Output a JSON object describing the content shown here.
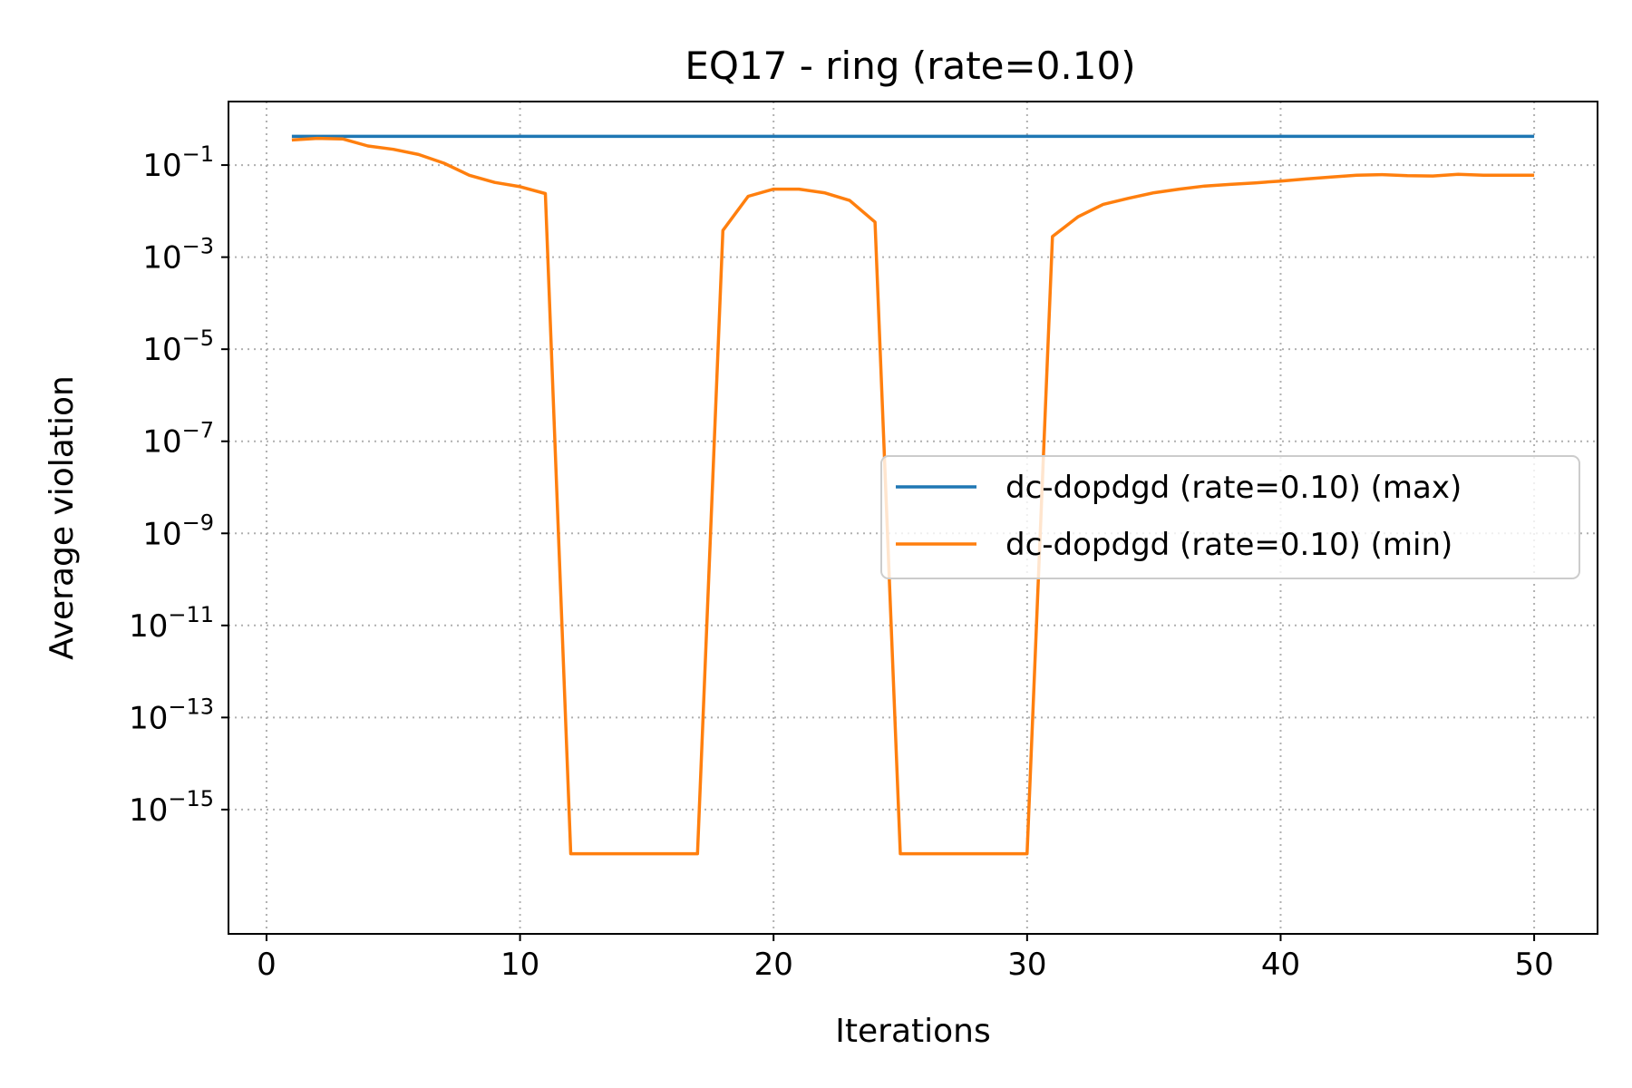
{
  "chart_data": {
    "type": "line",
    "title": "EQ17 - ring (rate=0.10)",
    "xlabel": "Iterations",
    "ylabel": "Average violation",
    "yscale": "log",
    "xlim": [
      -1.5,
      52.5
    ],
    "ylim_exponent": [
      -17.7,
      0.38
    ],
    "x_ticks": [
      0,
      10,
      20,
      30,
      40,
      50
    ],
    "y_ticks": [
      {
        "base": "10",
        "exp": "−1",
        "value": 0.1
      },
      {
        "base": "10",
        "exp": "−3",
        "value": 0.001
      },
      {
        "base": "10",
        "exp": "−5",
        "value": 1e-05
      },
      {
        "base": "10",
        "exp": "−7",
        "value": 1e-07
      },
      {
        "base": "10",
        "exp": "−9",
        "value": 1e-09
      },
      {
        "base": "10",
        "exp": "−11",
        "value": 1e-11
      },
      {
        "base": "10",
        "exp": "−13",
        "value": 1e-13
      },
      {
        "base": "10",
        "exp": "−15",
        "value": 1e-15
      }
    ],
    "grid": true,
    "legend_position": "center-right",
    "x": [
      1,
      2,
      3,
      4,
      5,
      6,
      7,
      8,
      9,
      10,
      11,
      12,
      13,
      14,
      15,
      16,
      17,
      18,
      19,
      20,
      21,
      22,
      23,
      24,
      25,
      26,
      27,
      28,
      29,
      30,
      31,
      32,
      33,
      34,
      35,
      36,
      37,
      38,
      39,
      40,
      41,
      42,
      43,
      44,
      45,
      46,
      47,
      48,
      49,
      50
    ],
    "series": [
      {
        "name": "dc-dopdgd (rate=0.10) (max)",
        "color": "#1f77b4",
        "values": [
          0.42,
          0.42,
          0.42,
          0.42,
          0.42,
          0.42,
          0.42,
          0.42,
          0.42,
          0.42,
          0.42,
          0.42,
          0.42,
          0.42,
          0.42,
          0.42,
          0.42,
          0.42,
          0.42,
          0.42,
          0.42,
          0.42,
          0.42,
          0.42,
          0.42,
          0.42,
          0.42,
          0.42,
          0.42,
          0.42,
          0.42,
          0.42,
          0.42,
          0.42,
          0.42,
          0.42,
          0.42,
          0.42,
          0.42,
          0.42,
          0.42,
          0.42,
          0.42,
          0.42,
          0.42,
          0.42,
          0.42,
          0.42,
          0.42,
          0.42
        ]
      },
      {
        "name": "dc-dopdgd (rate=0.10) (min)",
        "color": "#ff7f0e",
        "values": [
          0.35,
          0.38,
          0.37,
          0.26,
          0.22,
          0.17,
          0.11,
          0.06,
          0.042,
          0.034,
          0.024,
          1.1e-16,
          1.1e-16,
          1.1e-16,
          1.1e-16,
          1.1e-16,
          1.1e-16,
          0.0038,
          0.021,
          0.03,
          0.03,
          0.025,
          0.017,
          0.0058,
          1.1e-16,
          1.1e-16,
          1.1e-16,
          1.1e-16,
          1.1e-16,
          1.1e-16,
          0.0028,
          0.0075,
          0.014,
          0.019,
          0.025,
          0.03,
          0.035,
          0.038,
          0.041,
          0.045,
          0.05,
          0.055,
          0.06,
          0.062,
          0.059,
          0.058,
          0.063,
          0.06,
          0.06,
          0.06
        ]
      }
    ]
  }
}
